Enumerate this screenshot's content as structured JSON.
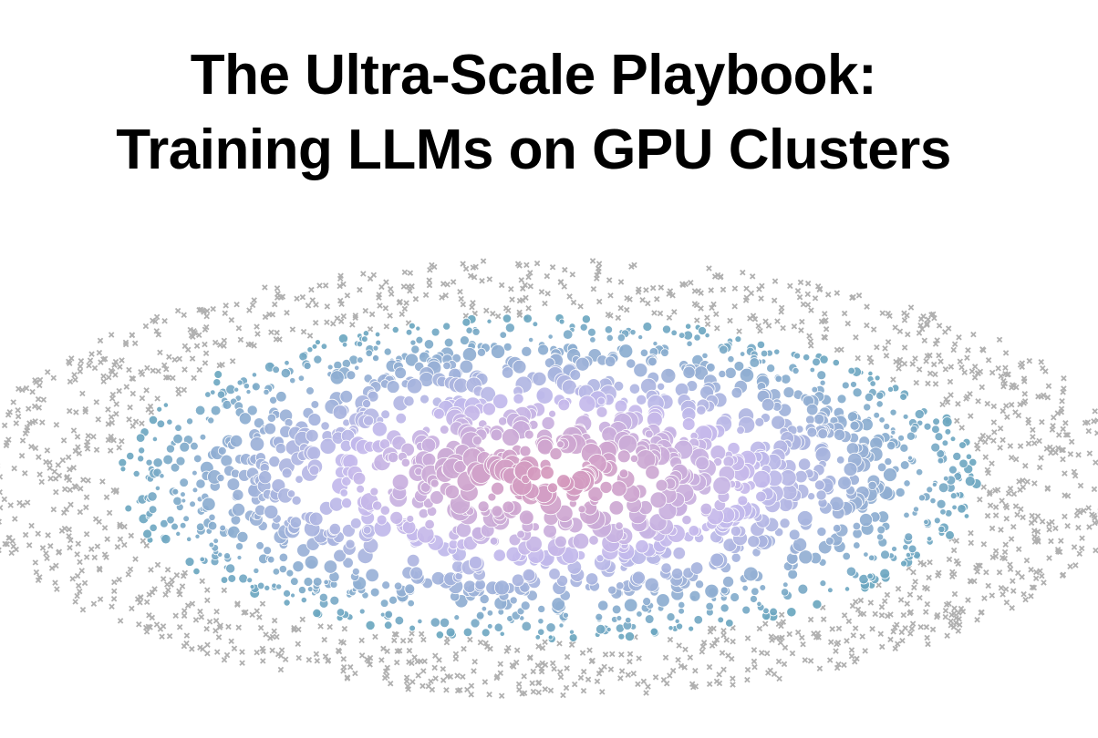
{
  "header": {
    "title_lines": [
      "The Ultra-Scale Playbook:",
      "Training LLMs on GPU Clusters"
    ]
  }
}
